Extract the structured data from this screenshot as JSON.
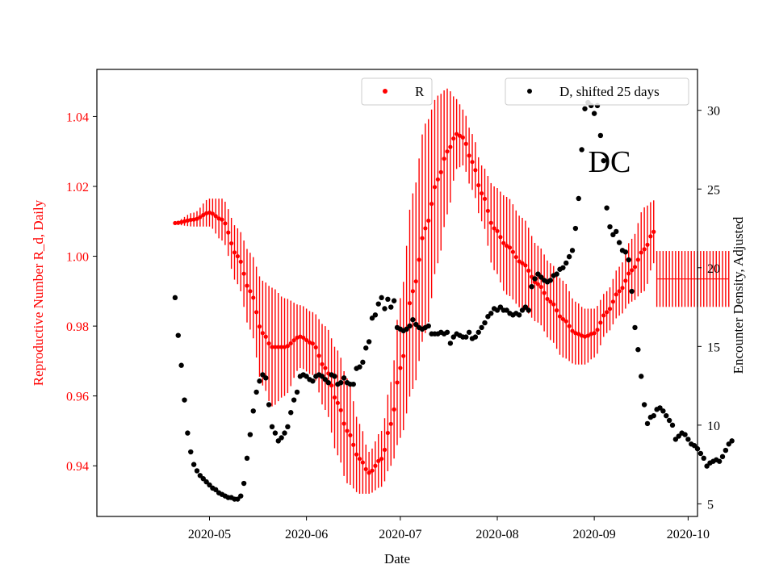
{
  "chart_data": {
    "type": "scatter",
    "title": "",
    "annotation": "DC",
    "xlabel": "Date",
    "ylabel_left": "Reproductive Number R_d, Daily",
    "ylabel_right": "Encounter Density, Adjusted",
    "x_day_range": [
      -36,
      156
    ],
    "x_origin_date": "2020-04-30",
    "x_ticks": [
      {
        "day": 0,
        "label": "2020-05"
      },
      {
        "day": 31,
        "label": "2020-06"
      },
      {
        "day": 61,
        "label": "2020-07"
      },
      {
        "day": 92,
        "label": "2020-08"
      },
      {
        "day": 123,
        "label": "2020-09"
      },
      {
        "day": 153,
        "label": "2020-10"
      }
    ],
    "ylim_left": [
      0.9255,
      1.0535
    ],
    "ylim_right": [
      4.2,
      32.6
    ],
    "yticks_left": [
      0.94,
      0.96,
      0.98,
      1.0,
      1.02,
      1.04
    ],
    "ytick_labels_left": [
      "0.94",
      "0.96",
      "0.98",
      "1.00",
      "1.02",
      "1.04"
    ],
    "yticks_right": [
      5,
      10,
      15,
      20,
      25,
      30
    ],
    "ytick_labels_right": [
      "5",
      "10",
      "15",
      "20",
      "25",
      "30"
    ],
    "colors": {
      "R": "#ff0000",
      "D": "#000000",
      "left_axis": "#ff0000"
    },
    "legend": [
      {
        "label": "R",
        "placement": "top-center"
      },
      {
        "label": "D, shifted 25 days",
        "placement": "top-right"
      }
    ],
    "series": [
      {
        "name": "R",
        "axis": "left",
        "start_day": -11,
        "keypoints": [
          {
            "day": -11,
            "y": 1.0095,
            "err": 0.0005
          },
          {
            "day": -5,
            "y": 1.0105,
            "err": 0.002
          },
          {
            "day": 0,
            "y": 1.0125,
            "err": 0.004
          },
          {
            "day": 4,
            "y": 1.0105,
            "err": 0.006
          },
          {
            "day": 9,
            "y": 1.0,
            "err": 0.008
          },
          {
            "day": 13,
            "y": 0.99,
            "err": 0.011
          },
          {
            "day": 17,
            "y": 0.978,
            "err": 0.015
          },
          {
            "day": 20,
            "y": 0.974,
            "err": 0.017
          },
          {
            "day": 24,
            "y": 0.974,
            "err": 0.014
          },
          {
            "day": 29,
            "y": 0.977,
            "err": 0.009
          },
          {
            "day": 33,
            "y": 0.975,
            "err": 0.009
          },
          {
            "day": 37,
            "y": 0.968,
            "err": 0.012
          },
          {
            "day": 41,
            "y": 0.958,
            "err": 0.015
          },
          {
            "day": 44,
            "y": 0.95,
            "err": 0.015
          },
          {
            "day": 48,
            "y": 0.942,
            "err": 0.01
          },
          {
            "day": 51,
            "y": 0.938,
            "err": 0.006
          },
          {
            "day": 55,
            "y": 0.942,
            "err": 0.008
          },
          {
            "day": 58,
            "y": 0.952,
            "err": 0.012
          },
          {
            "day": 61,
            "y": 0.968,
            "err": 0.02
          },
          {
            "day": 65,
            "y": 0.99,
            "err": 0.028
          },
          {
            "day": 69,
            "y": 1.008,
            "err": 0.03
          },
          {
            "day": 73,
            "y": 1.022,
            "err": 0.024
          },
          {
            "day": 76,
            "y": 1.03,
            "err": 0.018
          },
          {
            "day": 79,
            "y": 1.035,
            "err": 0.01
          },
          {
            "day": 81,
            "y": 1.034,
            "err": 0.008
          },
          {
            "day": 84,
            "y": 1.027,
            "err": 0.008
          },
          {
            "day": 87,
            "y": 1.018,
            "err": 0.008
          },
          {
            "day": 91,
            "y": 1.008,
            "err": 0.012
          },
          {
            "day": 95,
            "y": 1.003,
            "err": 0.014
          },
          {
            "day": 100,
            "y": 0.998,
            "err": 0.013
          },
          {
            "day": 105,
            "y": 0.992,
            "err": 0.011
          },
          {
            "day": 109,
            "y": 0.987,
            "err": 0.011
          },
          {
            "day": 113,
            "y": 0.982,
            "err": 0.011
          },
          {
            "day": 117,
            "y": 0.978,
            "err": 0.009
          },
          {
            "day": 120,
            "y": 0.977,
            "err": 0.008
          },
          {
            "day": 123,
            "y": 0.978,
            "err": 0.007
          },
          {
            "day": 127,
            "y": 0.984,
            "err": 0.006
          },
          {
            "day": 131,
            "y": 0.99,
            "err": 0.007
          },
          {
            "day": 135,
            "y": 0.996,
            "err": 0.009
          },
          {
            "day": 139,
            "y": 1.002,
            "err": 0.012
          },
          {
            "day": 142,
            "y": 1.007,
            "err": 0.009
          }
        ]
      },
      {
        "name": "R forecast",
        "axis": "left",
        "start_day": 143,
        "end_day": 166,
        "mean": 0.9935,
        "err": 0.008
      },
      {
        "name": "D, shifted 25 days",
        "axis": "right",
        "start_day": -11,
        "values": [
          18.1,
          15.7,
          13.8,
          11.6,
          9.5,
          8.3,
          7.5,
          7.1,
          6.8,
          6.6,
          6.4,
          6.2,
          6.0,
          5.9,
          5.7,
          5.6,
          5.5,
          5.4,
          5.4,
          5.3,
          5.3,
          5.5,
          6.3,
          7.9,
          9.4,
          10.9,
          12.1,
          12.8,
          13.2,
          13.0,
          11.3,
          9.9,
          9.5,
          9.0,
          9.2,
          9.5,
          9.9,
          10.8,
          11.6,
          12.1,
          13.1,
          13.2,
          13.1,
          12.9,
          12.8,
          13.1,
          13.2,
          13.1,
          12.9,
          12.7,
          13.2,
          13.1,
          12.6,
          12.7,
          13.0,
          12.7,
          12.6,
          12.6,
          13.6,
          13.7,
          14.0,
          14.9,
          15.3,
          16.8,
          17.0,
          17.7,
          18.1,
          17.4,
          18.0,
          17.5,
          17.9,
          16.2,
          16.1,
          16.0,
          16.1,
          16.3,
          16.7,
          16.4,
          16.2,
          16.1,
          16.2,
          16.3,
          15.8,
          15.8,
          15.8,
          15.9,
          15.8,
          15.9,
          15.2,
          15.6,
          15.8,
          15.7,
          15.6,
          15.6,
          15.9,
          15.5,
          15.6,
          15.9,
          16.2,
          16.5,
          16.9,
          17.1,
          17.4,
          17.3,
          17.5,
          17.3,
          17.3,
          17.1,
          17.0,
          17.1,
          17.0,
          17.3,
          17.5,
          17.3,
          18.8,
          19.3,
          19.6,
          19.4,
          19.2,
          19.1,
          19.2,
          19.5,
          19.6,
          19.9,
          20.0,
          20.3,
          20.7,
          21.1,
          22.5,
          24.4,
          27.5,
          30.1,
          30.5,
          30.3,
          29.8,
          30.3,
          28.4,
          26.8,
          23.8,
          22.6,
          22.1,
          22.3,
          21.6,
          21.1,
          21.0,
          20.5,
          18.5,
          16.2,
          14.8,
          13.1,
          11.3,
          10.1,
          10.5,
          10.6,
          11.0,
          11.1,
          10.9,
          10.6,
          10.3,
          10.0,
          9.1,
          9.3,
          9.5,
          9.4,
          9.1,
          8.8,
          8.7,
          8.5,
          8.2,
          7.9,
          7.4,
          7.6,
          7.7,
          7.8,
          7.7,
          8.0,
          8.4,
          8.8,
          9.0
        ]
      }
    ]
  }
}
